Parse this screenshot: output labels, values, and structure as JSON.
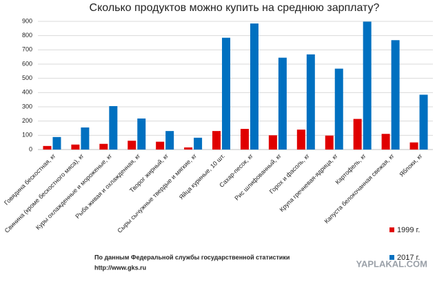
{
  "chart_data": {
    "type": "bar",
    "title": "Сколько продуктов можно купить на среднюю зарплату?",
    "categories": [
      "Говядина бескостная, кг",
      "Свинина (кроме бескостного мяса), кг",
      "Куры охлажденные и мороженые, кг",
      "Рыба живая и охлажденная, кг",
      "Творог жирный, кг",
      "Сыры сычужные твердые и мягкие, кг",
      "Яйца куриные, 10 шт.",
      "Сахар-песок, кг",
      "Рис шлифованный, кг",
      "Горох и фасоль, кг",
      "Крупа гречневая-ядрица, кг",
      "Картофель, кг",
      "Капуста белокочанная свежая, кг",
      "Яблоки, кг"
    ],
    "series": [
      {
        "name": "1999 г.",
        "color": "#e00000",
        "values": [
          25,
          35,
          40,
          62,
          55,
          15,
          130,
          145,
          100,
          140,
          98,
          215,
          110,
          50
        ]
      },
      {
        "name": "2017 г.",
        "color": "#0070c0",
        "values": [
          88,
          155,
          305,
          218,
          130,
          83,
          785,
          885,
          645,
          668,
          568,
          898,
          768,
          385
        ]
      }
    ],
    "ylim": [
      0,
      900
    ],
    "yticks": [
      0,
      100,
      200,
      300,
      400,
      500,
      600,
      700,
      800,
      900
    ],
    "grid": true,
    "source": [
      "По данным Федеральной службы государственной статистики",
      "http://www.gks.ru"
    ],
    "watermark": "YAPLAKAL.COM"
  }
}
